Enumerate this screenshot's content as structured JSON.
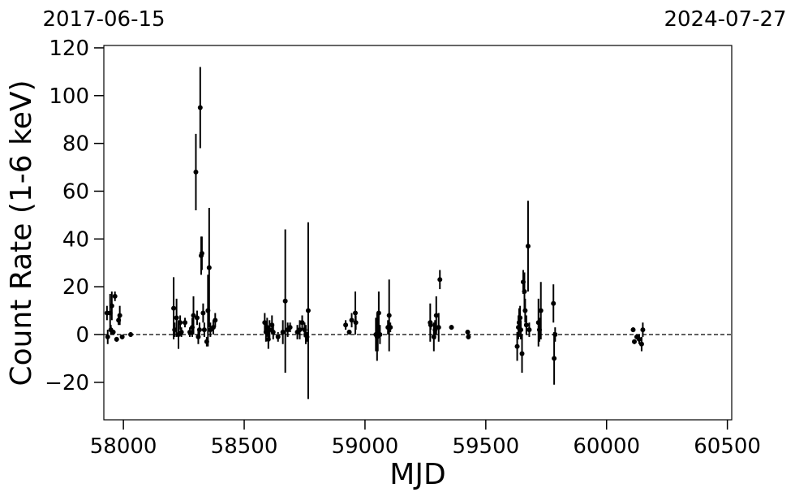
{
  "chart_data": {
    "type": "errorbar-scatter",
    "xlabel": "MJD",
    "ylabel": "Count Rate (1-6 keV)",
    "xlim": [
      57919,
      60518
    ],
    "ylim": [
      -35.7,
      121
    ],
    "xticks": [
      58000,
      58500,
      59000,
      59500,
      60000,
      60500
    ],
    "yticks": [
      {
        "value": -20,
        "label": "−20"
      },
      0,
      20,
      40,
      60,
      80,
      100,
      120
    ],
    "x2ticks": [
      {
        "value": 57919,
        "label": "2017-06-15"
      },
      {
        "value": 60518,
        "label": "2024-07-27"
      }
    ],
    "hline": 0,
    "series": [
      {
        "color": "#000000",
        "x": [
          57932,
          57935,
          57945,
          57948,
          57952,
          57958,
          57965,
          57972,
          57980,
          57985,
          57995,
          58030,
          58208,
          58212,
          58220,
          58228,
          58235,
          58240,
          58255,
          58275,
          58285,
          58290,
          58300,
          58305,
          58310,
          58315,
          58318,
          58322,
          58325,
          58330,
          58335,
          58345,
          58350,
          58355,
          58360,
          58372,
          58380,
          58585,
          58590,
          58595,
          58600,
          58605,
          58615,
          58620,
          58640,
          58660,
          58670,
          58680,
          58690,
          58720,
          58730,
          58740,
          58750,
          58755,
          58760,
          58765,
          58920,
          58935,
          58945,
          58960,
          58962,
          59045,
          59050,
          59053,
          59057,
          59062,
          59095,
          59100,
          59105,
          59270,
          59272,
          59285,
          59290,
          59295,
          59305,
          59310,
          59358,
          59425,
          59428,
          59630,
          59635,
          59638,
          59642,
          59645,
          59650,
          59655,
          59660,
          59663,
          59668,
          59675,
          59680,
          59718,
          59722,
          59728,
          59780,
          59783,
          59787,
          60110,
          60115,
          60125,
          60135,
          60145,
          60150
        ],
        "values": [
          9,
          -1,
          9,
          2,
          12,
          1,
          16,
          -2,
          6,
          8,
          -1,
          0,
          11,
          2,
          7,
          0,
          5,
          1,
          5,
          1,
          3,
          8,
          68,
          7,
          -1,
          2,
          95,
          33,
          34,
          9,
          2,
          -3,
          10,
          28,
          2,
          3,
          6,
          5,
          1,
          3,
          -2,
          2,
          4,
          1,
          -1,
          1,
          14,
          2,
          3,
          1,
          2,
          5,
          2,
          0,
          -1,
          10,
          4,
          1,
          6,
          9,
          5,
          0,
          -1,
          1,
          9,
          0,
          3,
          8,
          3,
          5,
          4,
          -1,
          2,
          8,
          3,
          23,
          3,
          1,
          -1,
          -5,
          3,
          5,
          7,
          2,
          -8,
          22,
          18,
          10,
          4,
          37,
          2,
          5,
          2,
          10,
          13,
          -10,
          0,
          2,
          -3,
          -1,
          -2,
          -4,
          2
        ],
        "errors": [
          3,
          3,
          8,
          2,
          6,
          1,
          2,
          1,
          2,
          4,
          1,
          1,
          13,
          3,
          8,
          6,
          3,
          2,
          2,
          2,
          4,
          8,
          16,
          3,
          3,
          3,
          17,
          8,
          7,
          4,
          3,
          2,
          15,
          25,
          3,
          3,
          3,
          4,
          4,
          4,
          4,
          4,
          4,
          3,
          2,
          5,
          30,
          3,
          2,
          3,
          4,
          3,
          3,
          4,
          2,
          37,
          2,
          1,
          3,
          9,
          3,
          7,
          10,
          8,
          9,
          4,
          3,
          15,
          2,
          8,
          2,
          6,
          4,
          8,
          6,
          4,
          1,
          1,
          1,
          6,
          5,
          6,
          5,
          4,
          8,
          5,
          8,
          5,
          4,
          19,
          3,
          10,
          5,
          12,
          8,
          11,
          3,
          1,
          1,
          1,
          2,
          3,
          3
        ]
      }
    ]
  }
}
